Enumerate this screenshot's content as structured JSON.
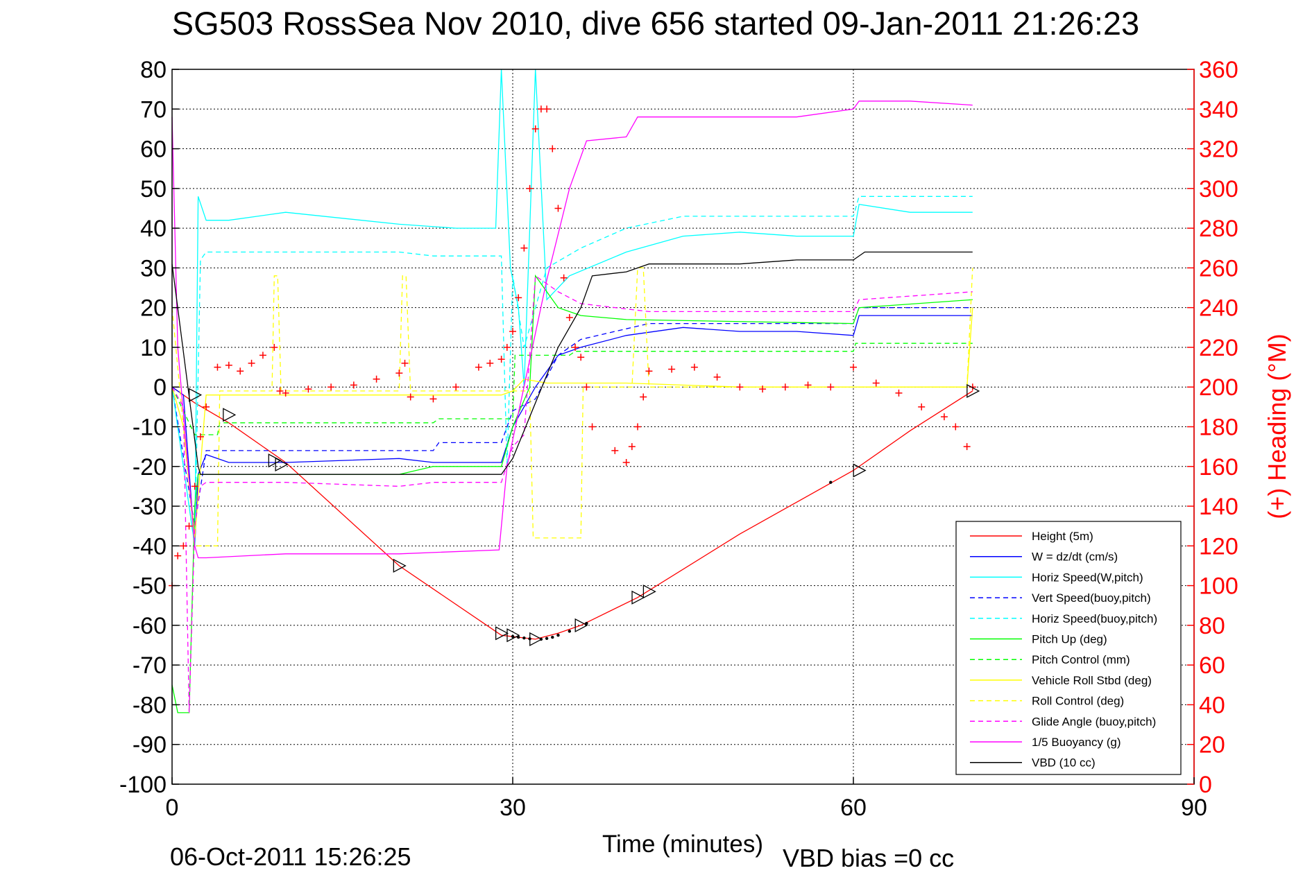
{
  "title": "SG503 RossSea Nov 2010, dive 656 started 09-Jan-2011 21:26:23",
  "footer_date": "06-Oct-2011 15:26:25",
  "vbd_bias": "VBD bias =0 cc",
  "chart_data": {
    "type": "line",
    "xlabel": "Time (minutes)",
    "ylabel_right": "(+) Heading (°M)",
    "xlim": [
      0,
      90
    ],
    "ylim_left": [
      -100,
      80
    ],
    "ylim_right": [
      0,
      360
    ],
    "x_ticks": [
      "0",
      "30",
      "60",
      "90"
    ],
    "y_left_ticks": [
      "80",
      "70",
      "60",
      "50",
      "40",
      "30",
      "20",
      "10",
      "0",
      "-10",
      "-20",
      "-30",
      "-40",
      "-50",
      "-60",
      "-70",
      "-80",
      "-90",
      "-100"
    ],
    "y_right_ticks": [
      "360",
      "340",
      "320",
      "300",
      "280",
      "260",
      "240",
      "220",
      "200",
      "180",
      "160",
      "140",
      "120",
      "100",
      "80",
      "60",
      "40",
      "20",
      "0"
    ],
    "grid": true,
    "legend_position": "bottom-right",
    "series": [
      {
        "name": "Height (5m)",
        "color": "#ff0000",
        "style": "solid",
        "x": [
          0,
          2,
          5,
          10,
          20,
          29,
          30.5,
          32,
          34,
          36,
          41,
          50,
          60,
          65,
          70.5
        ],
        "y": [
          0,
          -4,
          -9,
          -19,
          -45,
          -62.5,
          -63,
          -63.5,
          -62,
          -60,
          -53,
          -37,
          -21,
          -11,
          -1
        ]
      },
      {
        "name": "W = dz/dt (cm/s)",
        "color": "#0000ff",
        "style": "solid",
        "x": [
          0,
          1,
          2,
          2.3,
          3,
          5,
          10,
          20,
          23,
          29,
          30,
          32,
          34,
          36,
          40,
          45,
          50,
          55,
          60,
          60.5,
          65,
          70.5
        ],
        "y": [
          0,
          -2,
          -40,
          -22,
          -17,
          -19,
          -19,
          -18,
          -19,
          -19,
          -10,
          0,
          8,
          10,
          13,
          15,
          14,
          14,
          13,
          18,
          18,
          18
        ]
      },
      {
        "name": "Horiz Speed(W,pitch)",
        "color": "#00ffff",
        "style": "solid",
        "x": [
          0,
          1,
          2,
          2.3,
          3,
          5,
          10,
          20,
          25,
          28.5,
          29,
          29.8,
          30.5,
          31,
          32,
          33,
          35,
          40,
          45,
          50,
          55,
          60,
          60.5,
          65,
          70.5
        ],
        "y": [
          0,
          -20,
          -40,
          48,
          42,
          42,
          44,
          41,
          40,
          40,
          80,
          30,
          20,
          0,
          80,
          22,
          28,
          34,
          38,
          39,
          38,
          38,
          46,
          44,
          44
        ]
      },
      {
        "name": "Vert Speed(buoy,pitch)",
        "color": "#0000ff",
        "style": "dashed",
        "x": [
          0,
          2,
          3,
          5,
          23,
          23.5,
          29,
          30,
          32,
          34,
          36,
          42,
          60,
          60.5,
          70.5
        ],
        "y": [
          0,
          -35,
          -16,
          -16,
          -16,
          -14,
          -14,
          -6,
          -3,
          8,
          12,
          16,
          16,
          20,
          20
        ]
      },
      {
        "name": "Horiz Speed(buoy,pitch)",
        "color": "#00ffff",
        "style": "dashed",
        "x": [
          0,
          2,
          2.5,
          3,
          20,
          23,
          29,
          29.5,
          30,
          31,
          33,
          36,
          40,
          45,
          55,
          60,
          60.5,
          70.5
        ],
        "y": [
          0,
          -40,
          32,
          34,
          34,
          33,
          33,
          -20,
          28,
          10,
          30,
          35,
          40,
          43,
          43,
          43,
          48,
          48
        ]
      },
      {
        "name": "Pitch Up (deg)",
        "color": "#00ff00",
        "style": "solid",
        "x": [
          0,
          0.5,
          1.5,
          2,
          2.3,
          3,
          10,
          20,
          23,
          29,
          30,
          31.5,
          32,
          34,
          36,
          40,
          60,
          60.5,
          70.5
        ],
        "y": [
          -75,
          -82,
          -82,
          -30,
          -22,
          -22,
          -22,
          -22,
          -20,
          -20,
          -10,
          0,
          28,
          20,
          18,
          17,
          16,
          20,
          22
        ]
      },
      {
        "name": "Pitch Control (mm)",
        "color": "#00ff00",
        "style": "dashed",
        "x": [
          0,
          2,
          4,
          4.2,
          23,
          23.5,
          30,
          30.2,
          35,
          35.5,
          60,
          60.2,
          70.5
        ],
        "y": [
          0,
          -12,
          -12,
          -9,
          -9,
          -8,
          -8,
          8,
          8,
          9,
          9,
          11,
          11
        ]
      },
      {
        "name": "Vehicle Roll Stbd (deg)",
        "color": "#ffff00",
        "style": "solid",
        "x": [
          0,
          1,
          2,
          3,
          10,
          20,
          29,
          30,
          31,
          33,
          40,
          50,
          60,
          70,
          70.5
        ],
        "y": [
          0,
          -10,
          -38,
          -2,
          -2,
          -2,
          -2,
          -1,
          2,
          1,
          1,
          0,
          0,
          0,
          20
        ]
      },
      {
        "name": "Roll Control (deg)",
        "color": "#ffff00",
        "style": "dashed",
        "x": [
          0,
          2,
          4,
          4.2,
          8.8,
          9,
          9.3,
          9.6,
          20,
          20.3,
          20.6,
          21,
          29,
          31.5,
          31.8,
          36,
          36.2,
          40.5,
          41,
          41.5,
          42,
          70,
          70.5
        ],
        "y": [
          20,
          -40,
          -40,
          -1,
          -1,
          28,
          28,
          -1,
          -1,
          28,
          28,
          -1,
          -1,
          -1,
          -38,
          -38,
          0,
          0,
          30,
          30,
          0,
          0,
          30
        ]
      },
      {
        "name": "Glide Angle (buoy,pitch)",
        "color": "#ff00ff",
        "style": "dashed",
        "x": [
          0,
          1,
          1.5,
          2,
          2.5,
          3,
          10,
          20,
          23,
          29,
          30,
          31,
          32,
          34,
          36,
          42,
          60,
          60.5,
          70.5
        ],
        "y": [
          0,
          -5,
          -82,
          -35,
          -25,
          -24,
          -24,
          -25,
          -24,
          -24,
          -15,
          -12,
          28,
          24,
          21,
          19,
          19,
          22,
          24
        ]
      },
      {
        "name": "1/5 Buoyancy (g)",
        "color": "#ff00ff",
        "style": "solid",
        "x": [
          0,
          0.5,
          2,
          2.3,
          3,
          10,
          20,
          28.8,
          29.5,
          33,
          35,
          36.5,
          40,
          41,
          55,
          60,
          60.5,
          65,
          70.5
        ],
        "y": [
          68,
          10,
          -40,
          -43,
          -43,
          -42,
          -42,
          -41,
          -20,
          27,
          50,
          62,
          63,
          68,
          68,
          70,
          72,
          72,
          71
        ]
      },
      {
        "name": "VBD (10 cc)",
        "color": "#000000",
        "style": "solid",
        "x": [
          0,
          2.3,
          2.5,
          29,
          30,
          32,
          34,
          36,
          37,
          40,
          42,
          50,
          55,
          60,
          61,
          70.5
        ],
        "y": [
          31,
          -20,
          -22,
          -22,
          -18,
          -4,
          10,
          20,
          28,
          29,
          31,
          31,
          32,
          32,
          34,
          34
        ]
      },
      {
        "name": "Heading",
        "color": "#ff0000",
        "style": "markers-plus",
        "axis": "right",
        "x": [
          0,
          0.5,
          1,
          1.5,
          2,
          2.5,
          3,
          4,
          5,
          6,
          7,
          8,
          9,
          9.5,
          10,
          12,
          14,
          16,
          18,
          20,
          20.5,
          21,
          23,
          25,
          27,
          28,
          29,
          29.5,
          30,
          30.5,
          31,
          31.5,
          32,
          32.5,
          33,
          33.5,
          34,
          34.5,
          35,
          35.5,
          36,
          36.5,
          37,
          39,
          40,
          40.5,
          41,
          41.5,
          42,
          44,
          46,
          48,
          50,
          52,
          54,
          56,
          58,
          60,
          62,
          64,
          66,
          68,
          69,
          70,
          70.5
        ],
        "y": [
          100,
          115,
          120,
          130,
          150,
          175,
          190,
          210,
          211,
          208,
          212,
          216,
          220,
          198,
          197,
          199,
          200,
          201,
          204,
          207,
          212,
          195,
          194,
          200,
          210,
          212,
          214,
          220,
          228,
          245,
          270,
          300,
          330,
          340,
          340,
          320,
          290,
          255,
          235,
          220,
          215,
          200,
          180,
          168,
          162,
          170,
          180,
          195,
          208,
          209,
          210,
          205,
          200,
          199,
          200,
          201,
          200,
          210,
          202,
          197,
          190,
          185,
          180,
          170,
          200
        ]
      }
    ],
    "markers": {
      "open_triangles": [
        {
          "x": 2,
          "y": -2
        },
        {
          "x": 5,
          "y": -7
        },
        {
          "x": 9,
          "y": -18.5
        },
        {
          "x": 9.6,
          "y": -19.5
        },
        {
          "x": 20,
          "y": -45
        },
        {
          "x": 29,
          "y": -62
        },
        {
          "x": 30,
          "y": -62.5
        },
        {
          "x": 32,
          "y": -63.5
        },
        {
          "x": 36,
          "y": -60
        },
        {
          "x": 41,
          "y": -53
        },
        {
          "x": 42,
          "y": -51.5
        },
        {
          "x": 60.5,
          "y": -21
        },
        {
          "x": 70.5,
          "y": -1
        }
      ],
      "dots": [
        {
          "x": 30,
          "y": -62.8
        },
        {
          "x": 30.5,
          "y": -63
        },
        {
          "x": 31,
          "y": -63.2
        },
        {
          "x": 31.5,
          "y": -63.4
        },
        {
          "x": 32.5,
          "y": -63.5
        },
        {
          "x": 33,
          "y": -63.3
        },
        {
          "x": 33.5,
          "y": -63
        },
        {
          "x": 34,
          "y": -62.5
        },
        {
          "x": 35,
          "y": -61.5
        },
        {
          "x": 36.5,
          "y": -59.5
        },
        {
          "x": 58,
          "y": -24
        }
      ]
    }
  }
}
